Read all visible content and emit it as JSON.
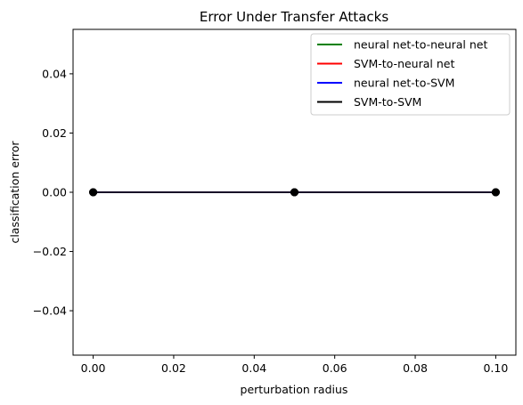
{
  "chart_data": {
    "type": "line",
    "title": "Error Under Transfer Attacks",
    "xlabel": "perturbation radius",
    "ylabel": "classification error",
    "xlim": [
      -0.005,
      0.105
    ],
    "ylim": [
      -0.055,
      0.055
    ],
    "xticks": [
      0.0,
      0.02,
      0.04,
      0.06,
      0.08,
      0.1
    ],
    "xtick_labels": [
      "0.00",
      "0.02",
      "0.04",
      "0.06",
      "0.08",
      "0.10"
    ],
    "yticks": [
      0.04,
      0.02,
      0.0,
      -0.02,
      -0.04
    ],
    "ytick_labels": [
      "0.04",
      "0.02",
      "0.00",
      "−0.02",
      "−0.04"
    ],
    "x": [
      0.0,
      0.05,
      0.1
    ],
    "grid": false,
    "legend_position": "upper right",
    "series": [
      {
        "name": "neural net-to-neural net",
        "color": "#008000",
        "values": [
          0.0,
          0.0,
          0.0
        ]
      },
      {
        "name": "SVM-to-neural net",
        "color": "#ff0000",
        "values": [
          0.0,
          0.0,
          0.0
        ]
      },
      {
        "name": "neural net-to-SVM",
        "color": "#0000ff",
        "values": [
          0.0,
          0.0,
          0.0
        ]
      },
      {
        "name": "SVM-to-SVM",
        "color": "#000000",
        "values": [
          0.0,
          0.0,
          0.0
        ]
      }
    ]
  }
}
